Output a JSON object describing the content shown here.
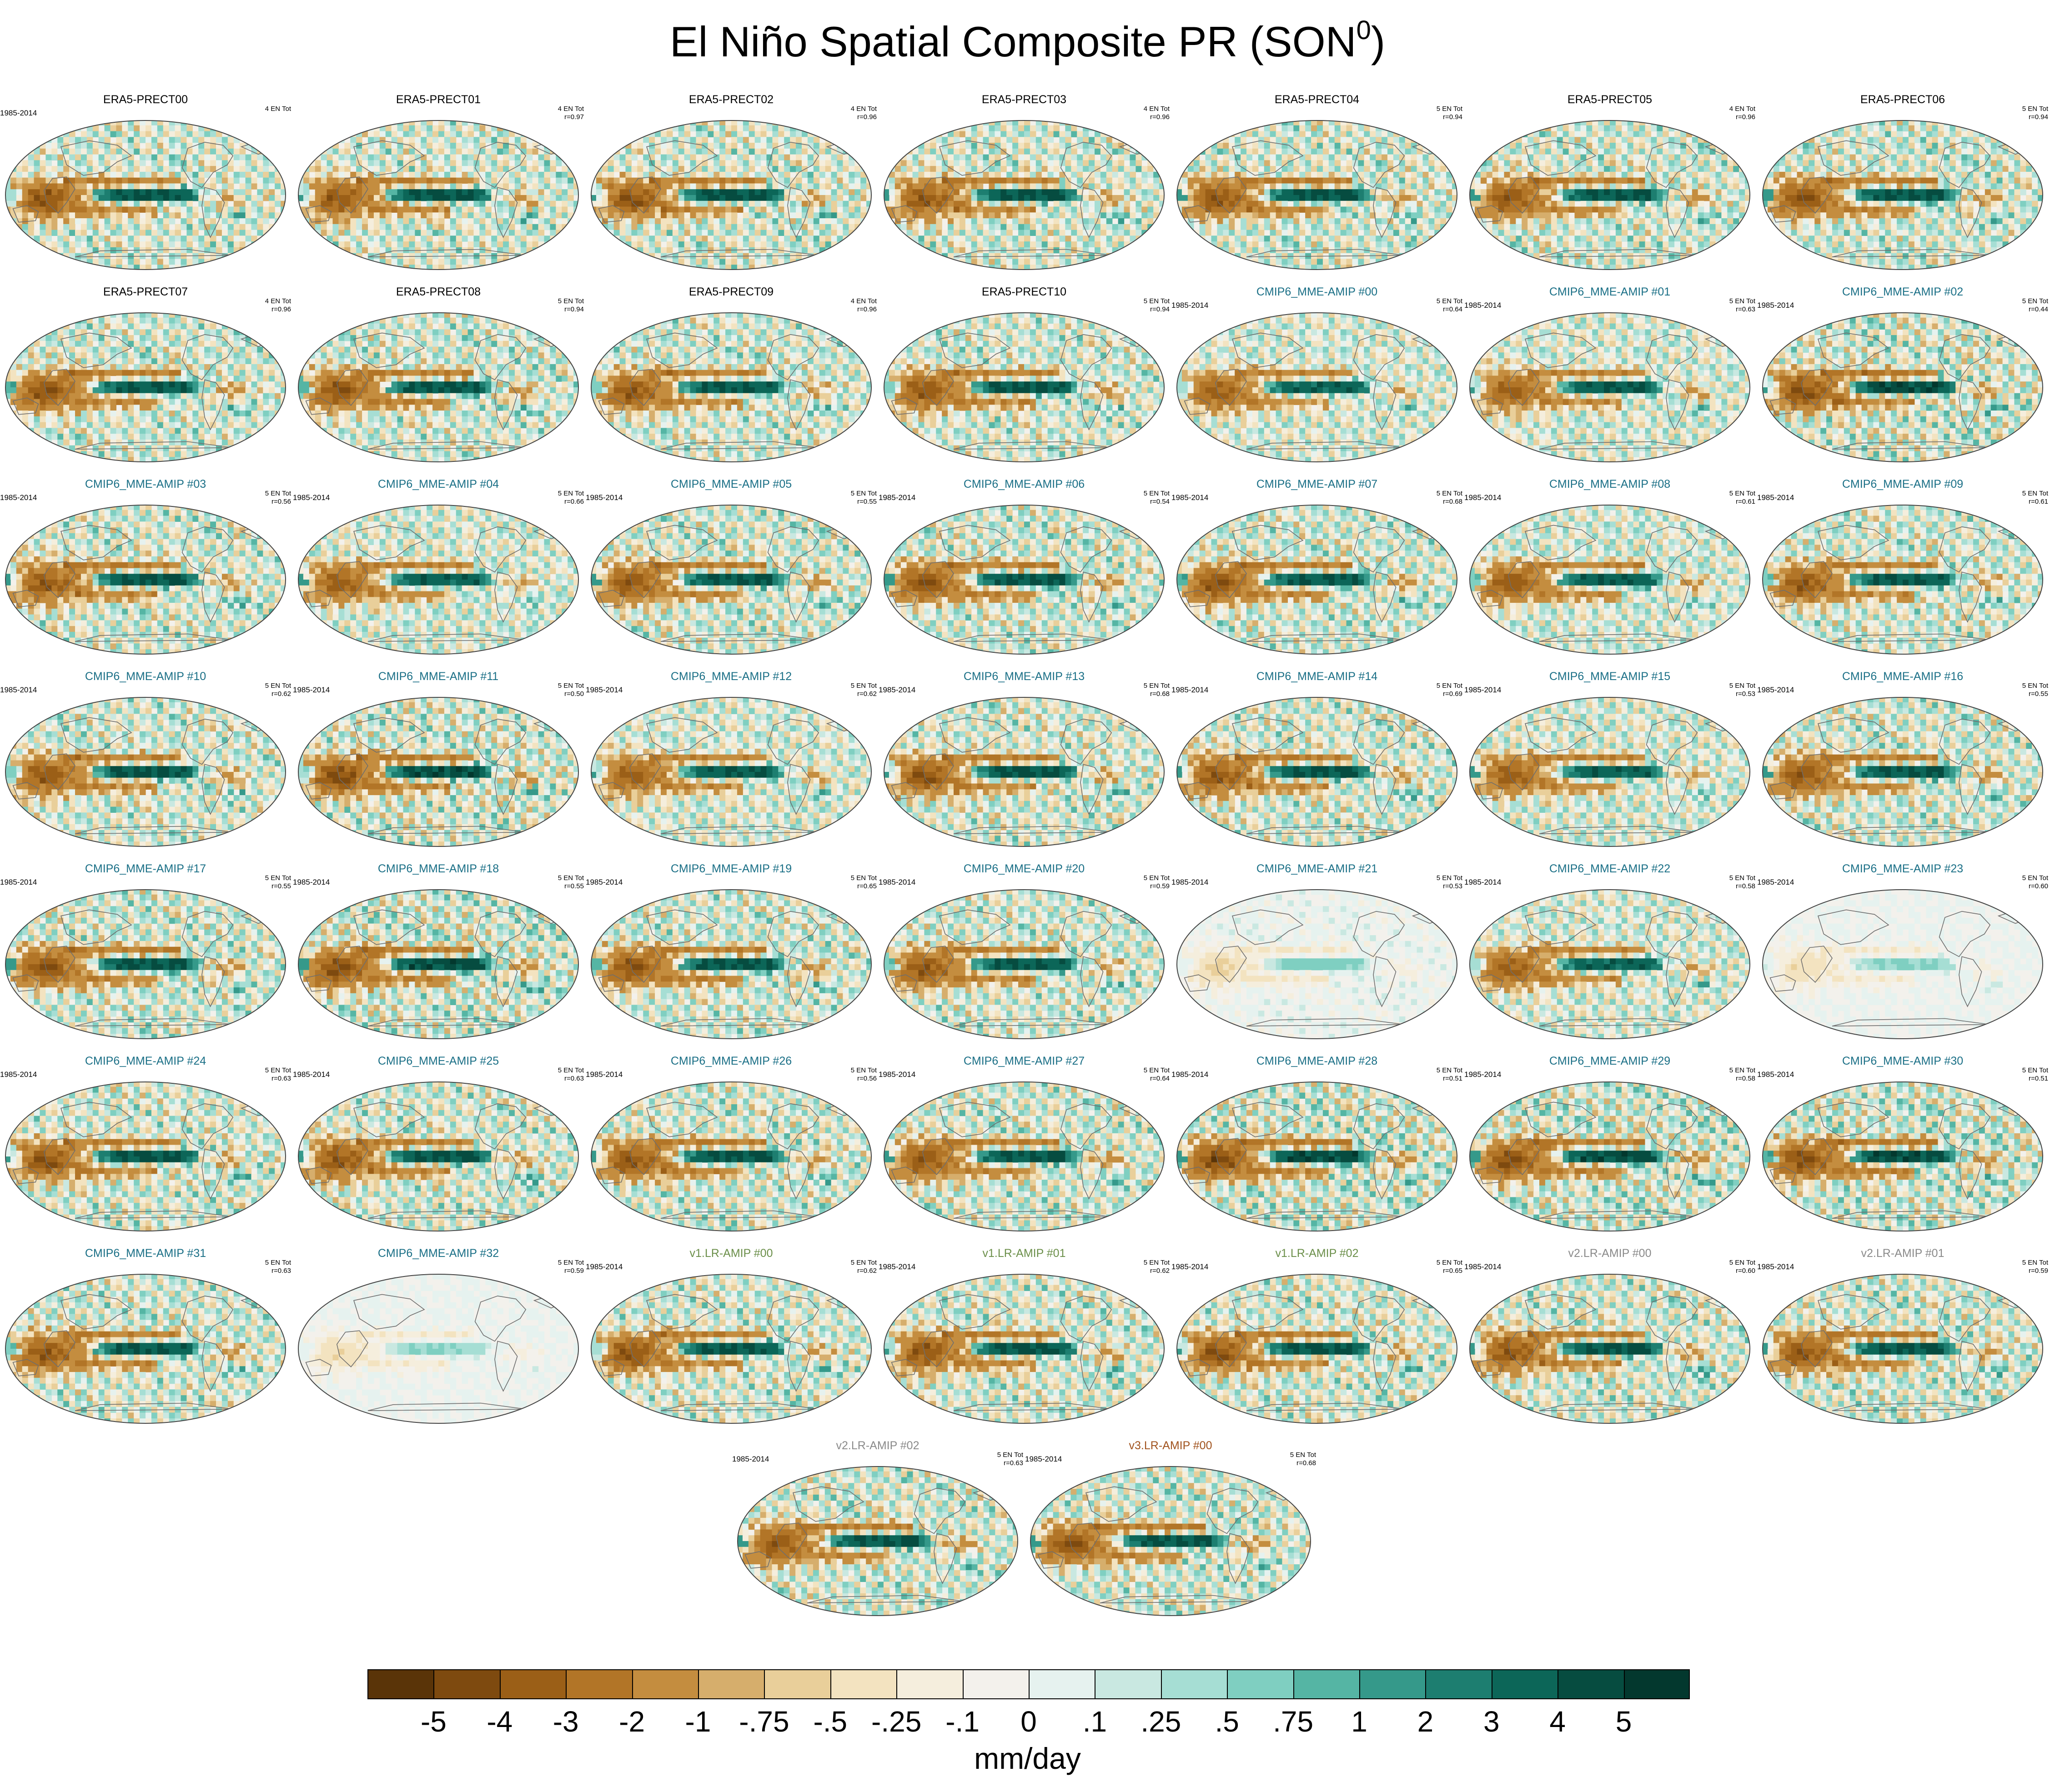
{
  "title": {
    "main": "El Niño Spatial Composite PR (SON",
    "sup": "0",
    "close": ")"
  },
  "colors": {
    "era5_label": "#000000",
    "cmip6_label": "#1a6f86",
    "v1_label": "#6b8f4a",
    "v2_label": "#8a8a8a",
    "v3_label": "#a0521d"
  },
  "chart_data": {
    "type": "heatmap",
    "variable": "PR",
    "season": "SON0",
    "colorbar": {
      "units": "mm/day",
      "tick_labels": [
        "-5",
        "-4",
        "-3",
        "-2",
        "-1",
        "-.75",
        "-.5",
        "-.25",
        "-.1",
        "0",
        ".1",
        ".25",
        ".5",
        ".75",
        "1",
        "2",
        "3",
        "4",
        "5"
      ],
      "colors": [
        "#5a3408",
        "#7e4a0f",
        "#9b5f17",
        "#b27527",
        "#c48d3f",
        "#d6ae6c",
        "#e9cf9a",
        "#f3e3c0",
        "#f5eedd",
        "#f3f1ec",
        "#e6f2ef",
        "#c9e8e1",
        "#a6ded4",
        "#7fcfc1",
        "#55b5a4",
        "#35998a",
        "#1d7e70",
        "#0c6658",
        "#064c40",
        "#03382e"
      ]
    },
    "panels": [
      {
        "label": "ERA5-PRECT00",
        "group": "era5",
        "period": "1985-2014",
        "events": "4 EN Tot",
        "r": "",
        "amp": 1.0
      },
      {
        "label": "ERA5-PRECT01",
        "group": "era5",
        "period": "",
        "events": "4 EN Tot",
        "r": "r=0.97",
        "amp": 1.0
      },
      {
        "label": "ERA5-PRECT02",
        "group": "era5",
        "period": "",
        "events": "4 EN Tot",
        "r": "r=0.96",
        "amp": 1.0
      },
      {
        "label": "ERA5-PRECT03",
        "group": "era5",
        "period": "",
        "events": "4 EN Tot",
        "r": "r=0.96",
        "amp": 1.0
      },
      {
        "label": "ERA5-PRECT04",
        "group": "era5",
        "period": "",
        "events": "5 EN Tot",
        "r": "r=0.94",
        "amp": 1.0
      },
      {
        "label": "ERA5-PRECT05",
        "group": "era5",
        "period": "",
        "events": "4 EN Tot",
        "r": "r=0.96",
        "amp": 1.0
      },
      {
        "label": "ERA5-PRECT06",
        "group": "era5",
        "period": "",
        "events": "5 EN Tot",
        "r": "r=0.94",
        "amp": 1.0
      },
      {
        "label": "ERA5-PRECT07",
        "group": "era5",
        "period": "",
        "events": "4 EN Tot",
        "r": "r=0.96",
        "amp": 1.0
      },
      {
        "label": "ERA5-PRECT08",
        "group": "era5",
        "period": "",
        "events": "5 EN Tot",
        "r": "r=0.94",
        "amp": 1.0
      },
      {
        "label": "ERA5-PRECT09",
        "group": "era5",
        "period": "",
        "events": "4 EN Tot",
        "r": "r=0.96",
        "amp": 1.0
      },
      {
        "label": "ERA5-PRECT10",
        "group": "era5",
        "period": "",
        "events": "5 EN Tot",
        "r": "r=0.94",
        "amp": 1.0
      },
      {
        "label": "CMIP6_MME-AMIP  #00",
        "group": "cmip6",
        "period": "1985-2014",
        "events": "5 EN Tot",
        "r": "r=0.64",
        "amp": 0.9
      },
      {
        "label": "CMIP6_MME-AMIP  #01",
        "group": "cmip6",
        "period": "1985-2014",
        "events": "5 EN Tot",
        "r": "r=0.63",
        "amp": 0.9
      },
      {
        "label": "CMIP6_MME-AMIP  #02",
        "group": "cmip6",
        "period": "1985-2014",
        "events": "5 EN Tot",
        "r": "r=0.44",
        "amp": 1.1
      },
      {
        "label": "CMIP6_MME-AMIP  #03",
        "group": "cmip6",
        "period": "1985-2014",
        "events": "5 EN Tot",
        "r": "r=0.56",
        "amp": 1.0
      },
      {
        "label": "CMIP6_MME-AMIP  #04",
        "group": "cmip6",
        "period": "1985-2014",
        "events": "5 EN Tot",
        "r": "r=0.66",
        "amp": 0.9
      },
      {
        "label": "CMIP6_MME-AMIP  #05",
        "group": "cmip6",
        "period": "1985-2014",
        "events": "5 EN Tot",
        "r": "r=0.55",
        "amp": 1.0
      },
      {
        "label": "CMIP6_MME-AMIP  #06",
        "group": "cmip6",
        "period": "1985-2014",
        "events": "5 EN Tot",
        "r": "r=0.54",
        "amp": 1.0
      },
      {
        "label": "CMIP6_MME-AMIP  #07",
        "group": "cmip6",
        "period": "1985-2014",
        "events": "5 EN Tot",
        "r": "r=0.68",
        "amp": 1.0
      },
      {
        "label": "CMIP6_MME-AMIP  #08",
        "group": "cmip6",
        "period": "1985-2014",
        "events": "5 EN Tot",
        "r": "r=0.61",
        "amp": 0.9
      },
      {
        "label": "CMIP6_MME-AMIP  #09",
        "group": "cmip6",
        "period": "1985-2014",
        "events": "5 EN Tot",
        "r": "r=0.61",
        "amp": 1.0
      },
      {
        "label": "CMIP6_MME-AMIP  #10",
        "group": "cmip6",
        "period": "1985-2014",
        "events": "5 EN Tot",
        "r": "r=0.62",
        "amp": 1.0
      },
      {
        "label": "CMIP6_MME-AMIP  #11",
        "group": "cmip6",
        "period": "1985-2014",
        "events": "5 EN Tot",
        "r": "r=0.50",
        "amp": 1.1
      },
      {
        "label": "CMIP6_MME-AMIP  #12",
        "group": "cmip6",
        "period": "1985-2014",
        "events": "5 EN Tot",
        "r": "r=0.62",
        "amp": 0.9
      },
      {
        "label": "CMIP6_MME-AMIP  #13",
        "group": "cmip6",
        "period": "1985-2014",
        "events": "5 EN Tot",
        "r": "r=0.68",
        "amp": 1.0
      },
      {
        "label": "CMIP6_MME-AMIP  #14",
        "group": "cmip6",
        "period": "1985-2014",
        "events": "5 EN Tot",
        "r": "r=0.69",
        "amp": 1.0
      },
      {
        "label": "CMIP6_MME-AMIP  #15",
        "group": "cmip6",
        "period": "1985-2014",
        "events": "5 EN Tot",
        "r": "r=0.53",
        "amp": 0.9
      },
      {
        "label": "CMIP6_MME-AMIP  #16",
        "group": "cmip6",
        "period": "1985-2014",
        "events": "5 EN Tot",
        "r": "r=0.55",
        "amp": 1.0
      },
      {
        "label": "CMIP6_MME-AMIP  #17",
        "group": "cmip6",
        "period": "1985-2014",
        "events": "5 EN Tot",
        "r": "r=0.55",
        "amp": 1.0
      },
      {
        "label": "CMIP6_MME-AMIP  #18",
        "group": "cmip6",
        "period": "1985-2014",
        "events": "5 EN Tot",
        "r": "r=0.55",
        "amp": 1.1
      },
      {
        "label": "CMIP6_MME-AMIP  #19",
        "group": "cmip6",
        "period": "1985-2014",
        "events": "5 EN Tot",
        "r": "r=0.65",
        "amp": 1.0
      },
      {
        "label": "CMIP6_MME-AMIP  #20",
        "group": "cmip6",
        "period": "1985-2014",
        "events": "5 EN Tot",
        "r": "r=0.59",
        "amp": 1.0
      },
      {
        "label": "CMIP6_MME-AMIP  #21",
        "group": "cmip6",
        "period": "1985-2014",
        "events": "5 EN Tot",
        "r": "r=0.53",
        "amp": 0.15
      },
      {
        "label": "CMIP6_MME-AMIP  #22",
        "group": "cmip6",
        "period": "1985-2014",
        "events": "5 EN Tot",
        "r": "r=0.58",
        "amp": 0.9
      },
      {
        "label": "CMIP6_MME-AMIP  #23",
        "group": "cmip6",
        "period": "1985-2014",
        "events": "5 EN Tot",
        "r": "r=0.60",
        "amp": 0.12
      },
      {
        "label": "CMIP6_MME-AMIP  #24",
        "group": "cmip6",
        "period": "1985-2014",
        "events": "5 EN Tot",
        "r": "r=0.63",
        "amp": 1.0
      },
      {
        "label": "CMIP6_MME-AMIP  #25",
        "group": "cmip6",
        "period": "1985-2014",
        "events": "5 EN Tot",
        "r": "r=0.63",
        "amp": 1.0
      },
      {
        "label": "CMIP6_MME-AMIP  #26",
        "group": "cmip6",
        "period": "1985-2014",
        "events": "5 EN Tot",
        "r": "r=0.56",
        "amp": 1.0
      },
      {
        "label": "CMIP6_MME-AMIP  #27",
        "group": "cmip6",
        "period": "1985-2014",
        "events": "5 EN Tot",
        "r": "r=0.64",
        "amp": 1.0
      },
      {
        "label": "CMIP6_MME-AMIP  #28",
        "group": "cmip6",
        "period": "1985-2014",
        "events": "5 EN Tot",
        "r": "r=0.51",
        "amp": 1.1
      },
      {
        "label": "CMIP6_MME-AMIP  #29",
        "group": "cmip6",
        "period": "1985-2014",
        "events": "5 EN Tot",
        "r": "r=0.58",
        "amp": 1.1
      },
      {
        "label": "CMIP6_MME-AMIP  #30",
        "group": "cmip6",
        "period": "1985-2014",
        "events": "5 EN Tot",
        "r": "r=0.51",
        "amp": 1.1
      },
      {
        "label": "CMIP6_MME-AMIP  #31",
        "group": "cmip6",
        "period": "",
        "events": "5 EN Tot",
        "r": "r=0.63",
        "amp": 1.0
      },
      {
        "label": "CMIP6_MME-AMIP  #32",
        "group": "cmip6",
        "period": "",
        "events": "5 EN Tot",
        "r": "r=0.59",
        "amp": 0.12
      },
      {
        "label": "v1.LR-AMIP  #00",
        "group": "v1",
        "period": "1985-2014",
        "events": "5 EN Tot",
        "r": "r=0.62",
        "amp": 1.0
      },
      {
        "label": "v1.LR-AMIP  #01",
        "group": "v1",
        "period": "1985-2014",
        "events": "5 EN Tot",
        "r": "r=0.62",
        "amp": 1.0
      },
      {
        "label": "v1.LR-AMIP  #02",
        "group": "v1",
        "period": "1985-2014",
        "events": "5 EN Tot",
        "r": "r=0.65",
        "amp": 1.0
      },
      {
        "label": "v2.LR-AMIP  #00",
        "group": "v2",
        "period": "1985-2014",
        "events": "5 EN Tot",
        "r": "r=0.60",
        "amp": 1.0
      },
      {
        "label": "v2.LR-AMIP  #01",
        "group": "v2",
        "period": "1985-2014",
        "events": "5 EN Tot",
        "r": "r=0.59",
        "amp": 1.0
      },
      {
        "label": "v2.LR-AMIP  #02",
        "group": "v2",
        "period": "1985-2014",
        "events": "5 EN Tot",
        "r": "r=0.63",
        "amp": 1.0
      },
      {
        "label": "v3.LR-AMIP  #00",
        "group": "v3",
        "period": "1985-2014",
        "events": "5 EN Tot",
        "r": "r=0.68",
        "amp": 1.0
      }
    ]
  }
}
